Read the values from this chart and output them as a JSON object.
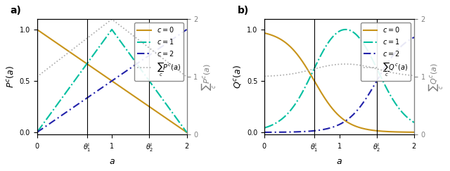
{
  "theta1": 0.6667,
  "theta2": 1.5,
  "color_c0": "#C8941A",
  "color_c1": "#00BFA0",
  "color_c2": "#2222AA",
  "color_sum": "#AAAAAA",
  "panel_a_ylabel": "$P^c(a)$",
  "panel_b_ylabel": "$Q^c(a)$",
  "sum_a_ylabel": "$\\sum_c P^c(a)$",
  "sum_b_ylabel": "$\\sum_c Q^c(a)$",
  "xlabel": "$a$",
  "legend_c0": "$c = 0$",
  "legend_c1": "$c = 1$",
  "legend_c2": "$c = 2$",
  "legend_sum_a": "$\\sum_c P^c(a)$",
  "legend_sum_b": "$\\sum_c Q^c(a)$",
  "label_a": "a)",
  "label_b": "b)"
}
